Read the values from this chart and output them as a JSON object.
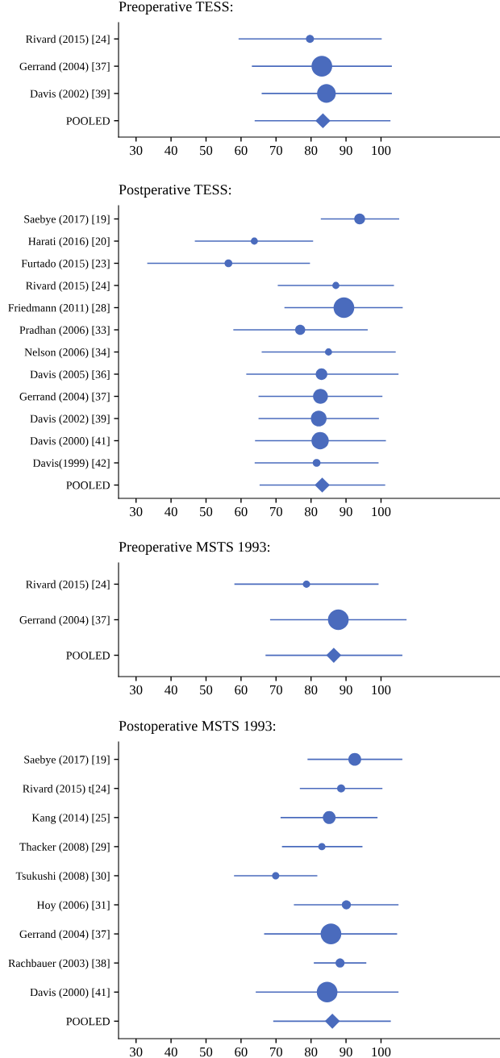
{
  "chart_data": [
    {
      "type": "scatter",
      "title": "Preoperative TESS:",
      "orientation": "horizontal",
      "grid": false,
      "legend": false,
      "xlim": [
        25,
        134
      ],
      "xticks": [
        30,
        40,
        50,
        60,
        70,
        80,
        90,
        100
      ],
      "categories": [
        "Rivard (2015) [24]",
        "Gerrand (2004) [37]",
        "Davis (2002) [39]",
        "POOLED"
      ],
      "series": [
        {
          "type": "bubble",
          "marker": "circle",
          "color": "#4a6bbd",
          "values": [
            79.7,
            83.1,
            84.4,
            null
          ],
          "errors": [
            [
              59.3,
              100.2
            ],
            [
              63.1,
              103.1
            ],
            [
              65.9,
              103.1
            ],
            null
          ],
          "sizes": [
            0.12,
            1,
            0.81,
            null
          ]
        },
        {
          "marker": "diamond",
          "color": "#4a6bbd",
          "values": [
            null,
            null,
            null,
            83.4
          ],
          "errors": [
            null,
            null,
            null,
            [
              63.9,
              102.7
            ]
          ]
        }
      ]
    },
    {
      "type": "scatter",
      "title": "Postperative TESS:",
      "orientation": "horizontal",
      "grid": false,
      "legend": false,
      "xlim": [
        25,
        134
      ],
      "xticks": [
        30,
        40,
        50,
        60,
        70,
        80,
        90,
        100
      ],
      "categories": [
        "Saebye (2017) [19]",
        "Harati (2016) [20]",
        "Furtado (2015) [23]",
        "Rivard (2015) [24]",
        "Friedmann (2011) [28]",
        "Pradhan (2006) [33]",
        "Nelson (2006) [34]",
        "Davis (2005) [36]",
        "Gerrand (2004) [37]",
        "Davis (2002) [39]",
        "Davis (2000) [41]",
        "Davis(1999) [42]",
        "POOLED"
      ],
      "series": [
        {
          "type": "bubble",
          "marker": "circle",
          "color": "#4a6bbd",
          "values": [
            93.9,
            63.8,
            56.4,
            87.1,
            89.4,
            76.9,
            85.0,
            83.0,
            82.7,
            82.2,
            82.6,
            81.6,
            null
          ],
          "errors": [
            [
              82.8,
              105.2
            ],
            [
              46.8,
              80.6
            ],
            [
              33.2,
              79.7
            ],
            [
              70.5,
              103.7
            ],
            [
              72.4,
              106.2
            ],
            [
              57.8,
              96.2
            ],
            [
              65.9,
              104.2
            ],
            [
              61.5,
              105.0
            ],
            [
              65.0,
              100.4
            ],
            [
              65.0,
              99.4
            ],
            [
              64.0,
              101.4
            ],
            [
              63.9,
              99.3
            ],
            null
          ],
          "sizes": [
            0.25,
            0.085,
            0.11,
            0.085,
            1,
            0.21,
            0.085,
            0.29,
            0.5,
            0.56,
            0.69,
            0.11,
            null
          ]
        },
        {
          "marker": "diamond",
          "color": "#4a6bbd",
          "values": [
            null,
            null,
            null,
            null,
            null,
            null,
            null,
            null,
            null,
            null,
            null,
            null,
            83.2
          ],
          "errors": [
            null,
            null,
            null,
            null,
            null,
            null,
            null,
            null,
            null,
            null,
            null,
            null,
            [
              65.3,
              101.2
            ]
          ]
        }
      ]
    },
    {
      "type": "scatter",
      "title": "Preoperative MSTS 1993:",
      "orientation": "horizontal",
      "grid": false,
      "legend": false,
      "xlim": [
        25,
        134
      ],
      "xticks": [
        30,
        40,
        50,
        60,
        70,
        80,
        90,
        100
      ],
      "categories": [
        "Rivard (2015) [24]",
        "Gerrand (2004) [37]",
        "POOLED"
      ],
      "series": [
        {
          "type": "bubble",
          "marker": "circle",
          "color": "#4a6bbd",
          "values": [
            78.7,
            87.8,
            null
          ],
          "errors": [
            [
              58.1,
              99.3
            ],
            [
              68.3,
              107.3
            ],
            null
          ],
          "sizes": [
            0.09,
            1,
            null
          ]
        },
        {
          "marker": "diamond",
          "color": "#4a6bbd",
          "values": [
            null,
            null,
            86.5
          ],
          "errors": [
            null,
            null,
            [
              67.0,
              106.1
            ]
          ]
        }
      ]
    },
    {
      "type": "scatter",
      "title": "Postoperative MSTS 1993:",
      "orientation": "horizontal",
      "grid": false,
      "legend": false,
      "xlim": [
        25,
        134
      ],
      "xticks": [
        30,
        40,
        50,
        60,
        70,
        80,
        90,
        100
      ],
      "categories": [
        "Saebye (2017) [19]",
        "Rivard (2015) t[24]",
        "Kang (2014) [25]",
        "Thacker (2008) [29]",
        "Tsukushi (2008) [30]",
        "Hoy (2006) [31]",
        "Gerrand (2004) [37]",
        "Rachbauer (2003) [38]",
        "Davis (2000) [41]",
        "POOLED"
      ],
      "series": [
        {
          "type": "bubble",
          "marker": "circle",
          "color": "#4a6bbd",
          "values": [
            92.5,
            88.6,
            85.2,
            83.1,
            69.9,
            90.1,
            85.7,
            88.3,
            84.6,
            null
          ],
          "errors": [
            [
              79.0,
              106.1
            ],
            [
              76.8,
              100.4
            ],
            [
              71.3,
              99.0
            ],
            [
              71.7,
              94.7
            ],
            [
              58.0,
              81.8
            ],
            [
              75.1,
              105.0
            ],
            [
              66.6,
              104.6
            ],
            [
              80.8,
              95.8
            ],
            [
              64.2,
              105.0
            ],
            null
          ],
          "sizes": [
            0.36,
            0.12,
            0.36,
            0.09,
            0.09,
            0.16,
            1,
            0.16,
            1,
            null
          ]
        },
        {
          "marker": "diamond",
          "color": "#4a6bbd",
          "values": [
            null,
            null,
            null,
            null,
            null,
            null,
            null,
            null,
            null,
            86.1
          ],
          "errors": [
            null,
            null,
            null,
            null,
            null,
            null,
            null,
            null,
            null,
            [
              69.2,
              102.8
            ]
          ]
        }
      ]
    }
  ]
}
